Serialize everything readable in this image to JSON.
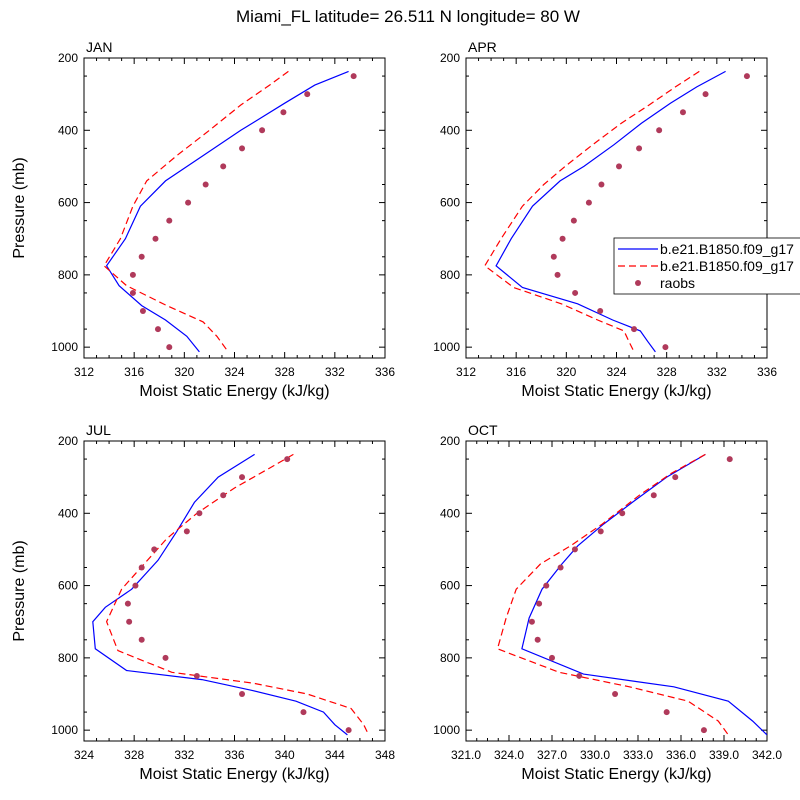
{
  "title": "Miami_FL  latitude= 26.511 N longitude= 80 W",
  "legend": {
    "entries": [
      {
        "label": "b.e21.B1850.f09_g17",
        "style": "solid",
        "color": "#0000ff"
      },
      {
        "label": "b.e21.B1850.f09_g17",
        "style": "dashed",
        "color": "#ff0000"
      },
      {
        "label": "raobs",
        "style": "marker",
        "color": "#b03a5b"
      }
    ]
  },
  "chart_data": [
    {
      "type": "line",
      "panel_label": "JAN",
      "xlabel": "Moist Static Energy (kJ/kg)",
      "ylabel": "Pressure (mb)",
      "xlim": [
        312,
        336
      ],
      "ylim": [
        200,
        1030
      ],
      "y_inverted": true,
      "xticks": [
        "312",
        "316",
        "320",
        "324",
        "328",
        "332",
        "336"
      ],
      "yticks": [
        "200",
        "400",
        "600",
        "800",
        "1000"
      ],
      "series": [
        {
          "name": "b.e21.B1850.f09_g17",
          "style": "solid",
          "color": "#0000ff",
          "points": [
            [
              333.1,
              237
            ],
            [
              330.4,
              275
            ],
            [
              328.0,
              325
            ],
            [
              324.5,
              400
            ],
            [
              321.5,
              470
            ],
            [
              318.5,
              540
            ],
            [
              316.5,
              610
            ],
            [
              315.3,
              700
            ],
            [
              313.8,
              775
            ],
            [
              314.8,
              830
            ],
            [
              316.6,
              885
            ],
            [
              318.5,
              925
            ],
            [
              320.2,
              970
            ],
            [
              321.2,
              1013
            ]
          ]
        },
        {
          "name": "b.e21.B1850.f09_g17",
          "style": "dashed",
          "color": "#ff0000",
          "points": [
            [
              328.3,
              237
            ],
            [
              326.8,
              275
            ],
            [
              324.5,
              330
            ],
            [
              322.0,
              400
            ],
            [
              319.4,
              470
            ],
            [
              317.0,
              540
            ],
            [
              315.9,
              610
            ],
            [
              314.9,
              700
            ],
            [
              313.6,
              775
            ],
            [
              315.4,
              830
            ],
            [
              318.6,
              885
            ],
            [
              321.5,
              930
            ],
            [
              322.6,
              970
            ],
            [
              323.5,
              1013
            ]
          ]
        },
        {
          "name": "raobs",
          "style": "marker",
          "color": "#b03a5b",
          "points": [
            [
              333.5,
              250
            ],
            [
              329.8,
              300
            ],
            [
              327.9,
              350
            ],
            [
              326.2,
              400
            ],
            [
              324.6,
              450
            ],
            [
              323.1,
              500
            ],
            [
              321.7,
              550
            ],
            [
              320.3,
              600
            ],
            [
              318.8,
              650
            ],
            [
              317.7,
              700
            ],
            [
              316.6,
              750
            ],
            [
              315.9,
              800
            ],
            [
              315.9,
              850
            ],
            [
              316.7,
              900
            ],
            [
              317.9,
              950
            ],
            [
              318.8,
              1000
            ]
          ]
        }
      ]
    },
    {
      "type": "line",
      "panel_label": "APR",
      "xlabel": "Moist Static Energy (kJ/kg)",
      "ylabel": "",
      "xlim": [
        312,
        336
      ],
      "ylim": [
        200,
        1030
      ],
      "y_inverted": true,
      "xticks": [
        "312",
        "316",
        "320",
        "324",
        "328",
        "332",
        "336"
      ],
      "yticks": [
        "200",
        "400",
        "600",
        "800",
        "1000"
      ],
      "series": [
        {
          "name": "b.e21.B1850.f09_g17",
          "style": "solid",
          "color": "#0000ff",
          "points": [
            [
              332.7,
              237
            ],
            [
              330.4,
              280
            ],
            [
              328.3,
              325
            ],
            [
              326.0,
              380
            ],
            [
              323.8,
              440
            ],
            [
              321.4,
              500
            ],
            [
              319.5,
              540
            ],
            [
              317.3,
              610
            ],
            [
              315.6,
              700
            ],
            [
              314.4,
              775
            ],
            [
              316.5,
              835
            ],
            [
              320.9,
              880
            ],
            [
              323.7,
              925
            ],
            [
              325.9,
              955
            ],
            [
              326.5,
              985
            ],
            [
              327.1,
              1013
            ]
          ]
        },
        {
          "name": "b.e21.B1850.f09_g17",
          "style": "dashed",
          "color": "#ff0000",
          "points": [
            [
              330.6,
              237
            ],
            [
              328.7,
              280
            ],
            [
              326.6,
              330
            ],
            [
              324.4,
              380
            ],
            [
              322.1,
              440
            ],
            [
              319.9,
              500
            ],
            [
              318.2,
              550
            ],
            [
              316.5,
              610
            ],
            [
              314.8,
              700
            ],
            [
              313.5,
              775
            ],
            [
              315.8,
              835
            ],
            [
              319.6,
              880
            ],
            [
              322.5,
              925
            ],
            [
              324.6,
              955
            ],
            [
              325.0,
              985
            ],
            [
              325.4,
              1013
            ]
          ]
        },
        {
          "name": "raobs",
          "style": "marker",
          "color": "#b03a5b",
          "points": [
            [
              334.4,
              250
            ],
            [
              331.1,
              300
            ],
            [
              329.3,
              350
            ],
            [
              327.4,
              400
            ],
            [
              325.8,
              450
            ],
            [
              324.2,
              500
            ],
            [
              322.8,
              550
            ],
            [
              321.8,
              600
            ],
            [
              320.6,
              650
            ],
            [
              319.7,
              700
            ],
            [
              319.0,
              750
            ],
            [
              319.3,
              800
            ],
            [
              320.7,
              850
            ],
            [
              322.7,
              900
            ],
            [
              325.4,
              950
            ],
            [
              327.9,
              1000
            ]
          ]
        }
      ]
    },
    {
      "type": "line",
      "panel_label": "JUL",
      "xlabel": "Moist Static Energy (kJ/kg)",
      "ylabel": "Pressure (mb)",
      "xlim": [
        324,
        348
      ],
      "ylim": [
        200,
        1030
      ],
      "y_inverted": true,
      "xticks": [
        "324",
        "328",
        "332",
        "336",
        "340",
        "344",
        "348"
      ],
      "yticks": [
        "200",
        "400",
        "600",
        "800",
        "1000"
      ],
      "series": [
        {
          "name": "b.e21.B1850.f09_g17",
          "style": "solid",
          "color": "#0000ff",
          "points": [
            [
              337.6,
              237
            ],
            [
              334.7,
              300
            ],
            [
              332.8,
              370
            ],
            [
              331.4,
              450
            ],
            [
              329.9,
              530
            ],
            [
              327.8,
              610
            ],
            [
              325.7,
              660
            ],
            [
              324.7,
              700
            ],
            [
              324.9,
              775
            ],
            [
              327.4,
              835
            ],
            [
              333.4,
              860
            ],
            [
              337.4,
              890
            ],
            [
              340.9,
              920
            ],
            [
              343.1,
              950
            ],
            [
              344.0,
              985
            ],
            [
              345.0,
              1013
            ]
          ]
        },
        {
          "name": "b.e21.B1850.f09_g17",
          "style": "dashed",
          "color": "#ff0000",
          "points": [
            [
              340.7,
              237
            ],
            [
              338.8,
              275
            ],
            [
              336.0,
              330
            ],
            [
              333.0,
              400
            ],
            [
              330.6,
              470
            ],
            [
              328.8,
              540
            ],
            [
              327.0,
              610
            ],
            [
              325.8,
              700
            ],
            [
              326.7,
              780
            ],
            [
              331.0,
              840
            ],
            [
              337.5,
              870
            ],
            [
              341.8,
              900
            ],
            [
              345.3,
              940
            ],
            [
              346.3,
              985
            ],
            [
              346.7,
              1013
            ]
          ]
        },
        {
          "name": "raobs",
          "style": "marker",
          "color": "#b03a5b",
          "points": [
            [
              340.2,
              250
            ],
            [
              336.6,
              300
            ],
            [
              335.1,
              350
            ],
            [
              333.2,
              400
            ],
            [
              332.2,
              450
            ],
            [
              329.6,
              500
            ],
            [
              328.6,
              550
            ],
            [
              328.1,
              600
            ],
            [
              327.5,
              650
            ],
            [
              327.6,
              700
            ],
            [
              328.6,
              750
            ],
            [
              330.5,
              800
            ],
            [
              333.0,
              850
            ],
            [
              336.6,
              900
            ],
            [
              341.5,
              950
            ],
            [
              345.1,
              1000
            ]
          ]
        }
      ]
    },
    {
      "type": "line",
      "panel_label": "OCT",
      "xlabel": "Moist Static Energy (kJ/kg)",
      "ylabel": "",
      "xlim": [
        321,
        342
      ],
      "ylim": [
        200,
        1030
      ],
      "y_inverted": true,
      "xticks": [
        "321.0",
        "324.0",
        "327.0",
        "330.0",
        "333.0",
        "336.0",
        "339.0",
        "342.0"
      ],
      "yticks": [
        "200",
        "400",
        "600",
        "800",
        "1000"
      ],
      "series": [
        {
          "name": "b.e21.B1850.f09_g17",
          "style": "solid",
          "color": "#0000ff",
          "points": [
            [
              337.7,
              237
            ],
            [
              335.0,
              300
            ],
            [
              332.6,
              370
            ],
            [
              330.6,
              430
            ],
            [
              328.8,
              490
            ],
            [
              327.7,
              540
            ],
            [
              326.3,
              610
            ],
            [
              325.4,
              690
            ],
            [
              324.9,
              775
            ],
            [
              329.2,
              845
            ],
            [
              335.5,
              880
            ],
            [
              339.3,
              920
            ],
            [
              341.0,
              975
            ],
            [
              342.0,
              1013
            ]
          ]
        },
        {
          "name": "b.e21.B1850.f09_g17",
          "style": "dashed",
          "color": "#ff0000",
          "points": [
            [
              337.7,
              237
            ],
            [
              335.3,
              290
            ],
            [
              333.1,
              350
            ],
            [
              330.5,
              430
            ],
            [
              328.3,
              490
            ],
            [
              326.2,
              540
            ],
            [
              324.5,
              610
            ],
            [
              323.8,
              690
            ],
            [
              323.2,
              775
            ],
            [
              327.5,
              840
            ],
            [
              332.4,
              880
            ],
            [
              336.5,
              920
            ],
            [
              338.6,
              975
            ],
            [
              339.3,
              1013
            ]
          ]
        },
        {
          "name": "raobs",
          "style": "marker",
          "color": "#b03a5b",
          "points": [
            [
              339.4,
              250
            ],
            [
              335.6,
              300
            ],
            [
              334.1,
              350
            ],
            [
              331.9,
              400
            ],
            [
              330.4,
              450
            ],
            [
              328.6,
              500
            ],
            [
              327.6,
              550
            ],
            [
              326.6,
              600
            ],
            [
              326.1,
              650
            ],
            [
              325.6,
              700
            ],
            [
              326.0,
              750
            ],
            [
              327.0,
              800
            ],
            [
              328.9,
              850
            ],
            [
              331.4,
              900
            ],
            [
              335.0,
              950
            ],
            [
              337.6,
              1000
            ]
          ]
        }
      ]
    }
  ]
}
